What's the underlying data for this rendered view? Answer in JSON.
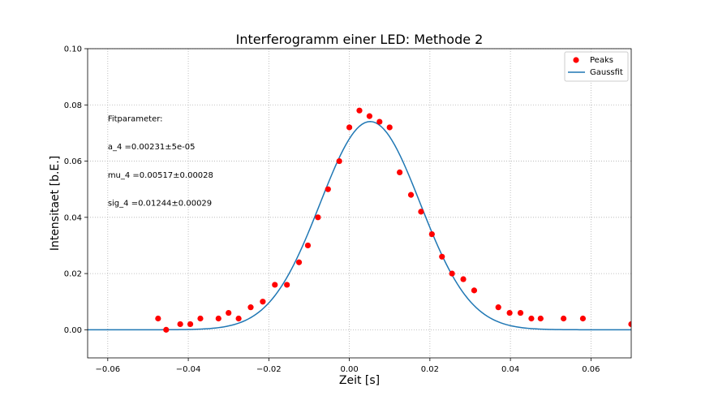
{
  "chart_data": {
    "type": "scatter",
    "title": "Interferogramm einer LED: Methode 2",
    "xlabel": "Zeit [s]",
    "ylabel": "Intensitaet [b.E.]",
    "xlim": [
      -0.065,
      0.07
    ],
    "ylim": [
      -0.01,
      0.1
    ],
    "xticks": [
      -0.06,
      -0.04,
      -0.02,
      0.0,
      0.02,
      0.04,
      0.06
    ],
    "xtick_labels": [
      "−0.06",
      "−0.04",
      "−0.02",
      "0.00",
      "0.02",
      "0.04",
      "0.06"
    ],
    "yticks": [
      0.0,
      0.02,
      0.04,
      0.06,
      0.08,
      0.1
    ],
    "ytick_labels": [
      "0.00",
      "0.02",
      "0.04",
      "0.06",
      "0.08",
      "0.10"
    ],
    "grid": true,
    "legend_position": "top-right",
    "legend": [
      {
        "label": "Peaks",
        "kind": "marker",
        "color": "#ff0000"
      },
      {
        "label": "Gaussfit",
        "kind": "line",
        "color": "#1f77b4"
      }
    ],
    "series": [
      {
        "name": "Peaks",
        "kind": "scatter",
        "color": "#ff0000",
        "x": [
          -0.0475,
          -0.0455,
          -0.042,
          -0.0395,
          -0.037,
          -0.0325,
          -0.03,
          -0.0275,
          -0.0245,
          -0.0215,
          -0.0185,
          -0.0155,
          -0.0125,
          -0.0103,
          -0.0078,
          -0.0053,
          -0.0025,
          0.0,
          0.0025,
          0.005,
          0.0075,
          0.01,
          0.0125,
          0.0153,
          0.0178,
          0.0205,
          0.023,
          0.0255,
          0.0283,
          0.031,
          0.037,
          0.0398,
          0.0425,
          0.0452,
          0.0475,
          0.0532,
          0.058,
          0.07
        ],
        "y": [
          0.004,
          0.0,
          0.002,
          0.002,
          0.004,
          0.004,
          0.006,
          0.004,
          0.008,
          0.01,
          0.016,
          0.016,
          0.024,
          0.03,
          0.04,
          0.05,
          0.06,
          0.072,
          0.078,
          0.076,
          0.074,
          0.072,
          0.056,
          0.048,
          0.042,
          0.034,
          0.026,
          0.02,
          0.018,
          0.014,
          0.008,
          0.006,
          0.006,
          0.004,
          0.004,
          0.004,
          0.004,
          0.002
        ]
      },
      {
        "name": "Gaussfit",
        "kind": "line",
        "color": "#1f77b4",
        "function": "gaussian",
        "a": 0.00231,
        "mu": 0.00517,
        "sigma": 0.01244,
        "x_range": [
          -0.065,
          0.07
        ],
        "samples": 200
      }
    ],
    "annotations": [
      "Fitparameter:",
      "a_4 =0.00231±5e-05",
      "mu_4 =0.00517±0.00028",
      "sig_4 =0.01244±0.00029"
    ],
    "annotation_x": -0.06,
    "annotation_y": [
      0.075,
      0.065,
      0.055,
      0.045
    ]
  }
}
